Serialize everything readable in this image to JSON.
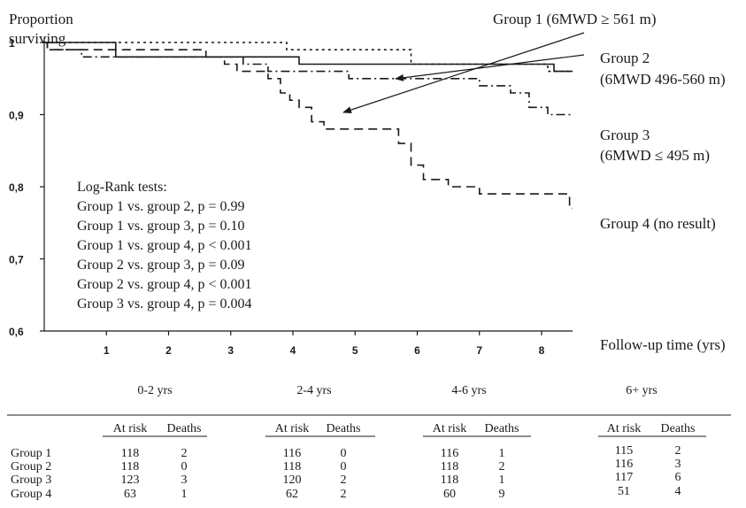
{
  "chart_data": {
    "type": "line",
    "ylabel": "Proportion surviving",
    "xlabel": "Follow-up time (yrs)",
    "ylim": [
      0.6,
      1.0
    ],
    "xlim": [
      0,
      8.5
    ],
    "yticks": [
      {
        "value": 1.0,
        "label": "1"
      },
      {
        "value": 0.9,
        "label": "0,9"
      },
      {
        "value": 0.8,
        "label": "0,8"
      },
      {
        "value": 0.7,
        "label": "0,7"
      },
      {
        "value": 0.6,
        "label": "0,6"
      }
    ],
    "xticks": [
      {
        "value": 1,
        "label": "1"
      },
      {
        "value": 2,
        "label": "2"
      },
      {
        "value": 3,
        "label": "3"
      },
      {
        "value": 4,
        "label": "4"
      },
      {
        "value": 5,
        "label": "5"
      },
      {
        "value": 6,
        "label": "6"
      },
      {
        "value": 7,
        "label": "7"
      },
      {
        "value": 8,
        "label": "8"
      }
    ],
    "grid": false,
    "series": [
      {
        "name": "Group 1 (6MWD ≥ 561 m)",
        "style": "solid",
        "color": "#1a1a1a",
        "x": [
          0,
          1.15,
          1.15,
          2.9,
          2.9,
          4.1,
          4.1,
          8.2,
          8.2,
          8.5
        ],
        "y": [
          1.0,
          1.0,
          0.98,
          0.98,
          0.98,
          0.98,
          0.97,
          0.97,
          0.96,
          0.96
        ]
      },
      {
        "name": "Group 2 (6MWD 496-560 m)",
        "style": "dotted",
        "color": "#1a1a1a",
        "x": [
          0,
          3.9,
          3.9,
          5.9,
          5.9,
          8.1,
          8.1,
          8.5
        ],
        "y": [
          1.0,
          1.0,
          0.99,
          0.99,
          0.97,
          0.97,
          0.96,
          0.96
        ]
      },
      {
        "name": "Group 3 (6MWD ≤ 495 m)",
        "style": "dashdot",
        "color": "#1a1a1a",
        "x": [
          0,
          0.05,
          0.05,
          0.6,
          0.6,
          1.05,
          1.05,
          3.2,
          3.2,
          3.6,
          3.6,
          4.0,
          4.0,
          4.9,
          4.9,
          7.0,
          7.0,
          7.5,
          7.5,
          7.8,
          7.8,
          8.1,
          8.1,
          8.5
        ],
        "y": [
          1.0,
          1.0,
          0.99,
          0.99,
          0.98,
          0.98,
          0.98,
          0.98,
          0.97,
          0.97,
          0.96,
          0.96,
          0.96,
          0.96,
          0.95,
          0.95,
          0.94,
          0.94,
          0.93,
          0.93,
          0.91,
          0.91,
          0.9,
          0.9
        ]
      },
      {
        "name": "Group 4 (no result)",
        "style": "dashed",
        "color": "#1a1a1a",
        "x": [
          0,
          0.05,
          0.05,
          2.6,
          2.6,
          2.9,
          2.9,
          3.1,
          3.1,
          3.6,
          3.6,
          3.8,
          3.8,
          3.95,
          3.95,
          4.1,
          4.1,
          4.3,
          4.3,
          4.5,
          4.5,
          4.8,
          4.8,
          5.7,
          5.7,
          5.9,
          5.9,
          6.1,
          6.1,
          6.5,
          6.5,
          7.0,
          7.0,
          8.45,
          8.45,
          8.5
        ],
        "y": [
          1.0,
          1.0,
          0.99,
          0.99,
          0.98,
          0.98,
          0.97,
          0.97,
          0.96,
          0.96,
          0.95,
          0.95,
          0.93,
          0.93,
          0.92,
          0.92,
          0.91,
          0.91,
          0.89,
          0.89,
          0.88,
          0.88,
          0.88,
          0.88,
          0.86,
          0.86,
          0.83,
          0.83,
          0.81,
          0.81,
          0.8,
          0.8,
          0.79,
          0.79,
          0.77,
          0.77
        ]
      }
    ],
    "annotations": [
      {
        "text": "Group 1 (6MWD ≥ 561 m)",
        "target_series": 0
      },
      {
        "text_lines": [
          "Group 2",
          "(6MWD 496-560 m)"
        ],
        "target_series": 1
      },
      {
        "text_lines": [
          "Group 3",
          "(6MWD ≤ 495 m)"
        ]
      },
      {
        "text": "Group 4 (no result)"
      }
    ],
    "logrank": {
      "title": "Log-Rank tests:",
      "lines": [
        "Group 1 vs. group 2, p = 0.99",
        "Group 1 vs. group 3, p = 0.10",
        "Group 1 vs. group 4, p < 0.001",
        "Group 2 vs. group 3, p = 0.09",
        "Group 2 vs. group 4, p < 0.001",
        "Group 3 vs. group 4, p = 0.004"
      ]
    }
  },
  "risk_table": {
    "periods": [
      "0-2 yrs",
      "2-4 yrs",
      "4-6 yrs",
      "6+ yrs"
    ],
    "col_headers": [
      "At risk",
      "Deaths"
    ],
    "row_labels": [
      "Group 1",
      "Group 2",
      "Group 3",
      "Group 4"
    ],
    "cells": [
      [
        [
          "118",
          "2"
        ],
        [
          "118",
          "0"
        ],
        [
          "123",
          "3"
        ],
        [
          "63",
          "1"
        ]
      ],
      [
        [
          "116",
          "0"
        ],
        [
          "118",
          "0"
        ],
        [
          "120",
          "2"
        ],
        [
          "62",
          "2"
        ]
      ],
      [
        [
          "116",
          "1"
        ],
        [
          "118",
          "2"
        ],
        [
          "118",
          "1"
        ],
        [
          "60",
          "9"
        ]
      ],
      [
        [
          "115",
          "2"
        ],
        [
          "116",
          "3"
        ],
        [
          "117",
          "6"
        ],
        [
          "51",
          "4"
        ]
      ]
    ]
  }
}
